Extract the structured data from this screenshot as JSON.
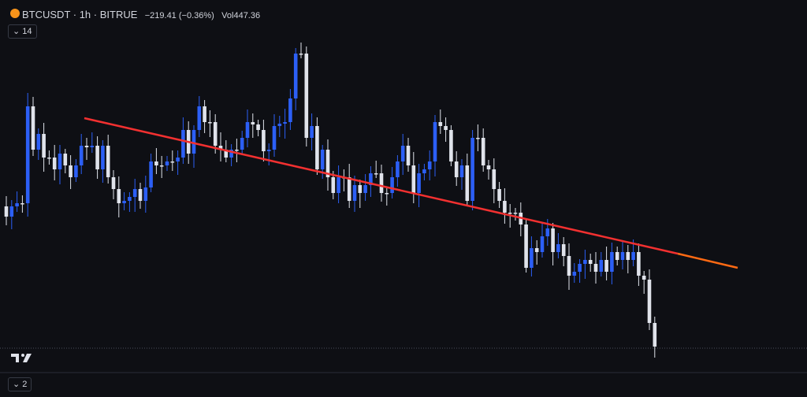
{
  "header": {
    "symbol": "BTCUSDT · 1h · BITRUE",
    "change": "−219.41 (−0.36%)",
    "volume_label": "Vol",
    "volume": "447.36"
  },
  "indicators": {
    "main_pane_count": "14",
    "lower_pane_count": "2"
  }
}
